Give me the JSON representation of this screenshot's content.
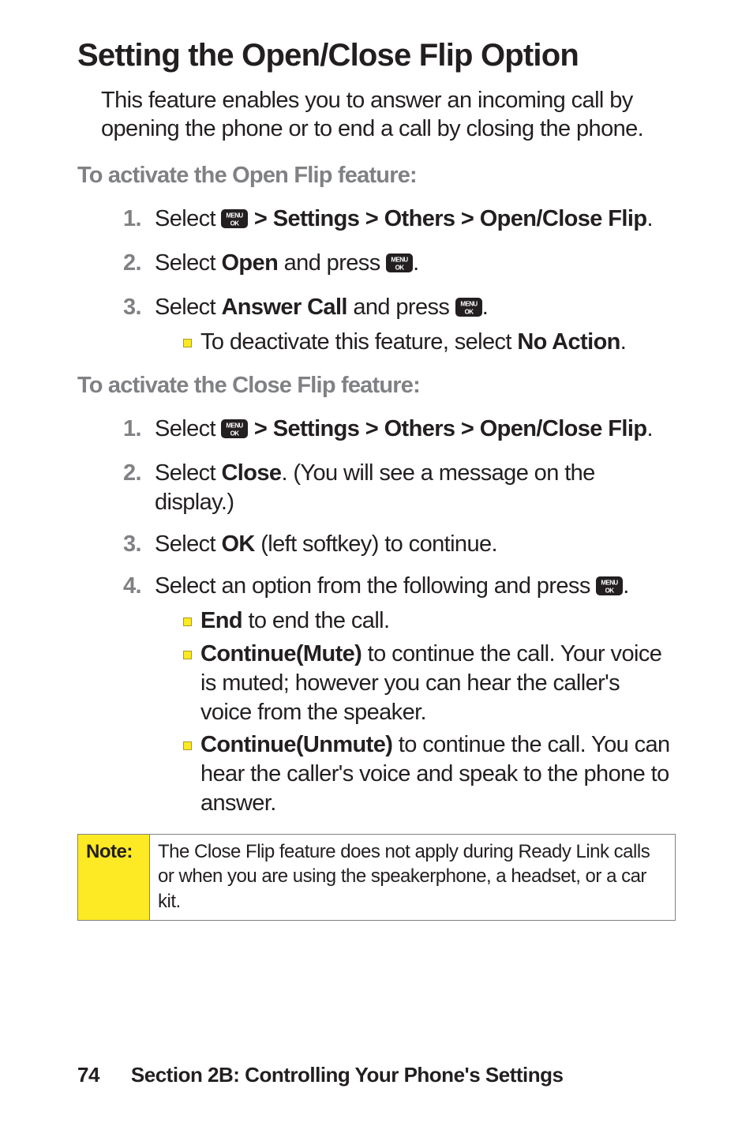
{
  "heading": "Setting the Open/Close Flip Option",
  "intro": "This feature enables you to answer an incoming call by opening the phone or to end a call by closing the phone.",
  "subhead_open": "To activate the Open Flip feature:",
  "subhead_close": "To activate the Close Flip feature:",
  "open_steps": {
    "s1_a": "Select ",
    "s1_b": " > Settings > Others > Open/Close Flip",
    "s1_c": ".",
    "s2_a": "Select ",
    "s2_b": "Open",
    "s2_c": " and press ",
    "s2_d": ".",
    "s3_a": "Select ",
    "s3_b": "Answer Call",
    "s3_c": " and press ",
    "s3_d": ".",
    "s3_bullet_a": "To deactivate this feature, select ",
    "s3_bullet_b": "No Action",
    "s3_bullet_c": "."
  },
  "close_steps": {
    "s1_a": "Select ",
    "s1_b": " > Settings > Others > Open/Close Flip",
    "s1_c": ".",
    "s2_a": "Select ",
    "s2_b": "Close",
    "s2_c": ". (You will see a message on the display.)",
    "s3_a": "Select ",
    "s3_b": "OK",
    "s3_c": " (left softkey) to continue.",
    "s4_a": "Select an option from the following and press ",
    "s4_b": ".",
    "b1_a": "End",
    "b1_b": " to end the call.",
    "b2_a": "Continue(Mute)",
    "b2_b": " to continue the call. Your voice is muted; however you can hear the caller's voice from the speaker.",
    "b3_a": "Continue(Unmute)",
    "b3_b": " to continue the call. You can hear the caller's voice and speak to the phone to answer."
  },
  "nums": {
    "n1": "1.",
    "n2": "2.",
    "n3": "3.",
    "n4": "4."
  },
  "note": {
    "label": "Note:",
    "text": "The Close Flip feature does not apply during Ready Link calls or when you are using the speakerphone, a headset, or a car kit."
  },
  "footer": {
    "page": "74",
    "section": "Section 2B: Controlling Your Phone's Settings"
  },
  "icon": {
    "bg": "#231f20",
    "fg": "#ffffff",
    "rx": 5,
    "width": 34,
    "height": 24,
    "line1": "MENU",
    "line2": "OK",
    "fontsize1": 8,
    "fontsize2": 8
  }
}
